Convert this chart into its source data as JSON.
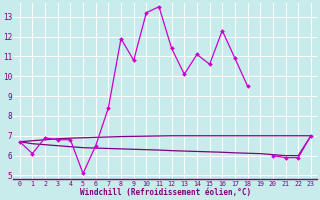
{
  "xlabel": "Windchill (Refroidissement éolien,°C)",
  "background_color": "#c8ecec",
  "grid_color": "#b0d8d8",
  "line_main_color": "#cc00cc",
  "line_upper_color": "#800080",
  "line_lower_color": "#800080",
  "x": [
    0,
    1,
    2,
    3,
    4,
    5,
    6,
    7,
    8,
    9,
    10,
    11,
    12,
    13,
    14,
    15,
    16,
    17,
    18,
    19,
    20,
    21,
    22,
    23
  ],
  "y_curve": [
    6.7,
    6.1,
    6.9,
    6.8,
    6.8,
    5.1,
    6.5,
    8.4,
    11.9,
    10.8,
    13.2,
    13.5,
    11.4,
    10.1,
    11.1,
    10.6,
    12.3,
    10.9,
    9.5,
    null,
    6.0,
    5.9,
    5.9,
    7.0
  ],
  "y_upper": [
    6.7,
    6.75,
    6.8,
    6.85,
    6.88,
    6.9,
    6.92,
    6.94,
    6.96,
    6.97,
    6.98,
    6.99,
    7.0,
    7.0,
    7.0,
    7.0,
    7.0,
    7.0,
    7.0,
    7.0,
    7.0,
    7.0,
    7.0,
    7.0
  ],
  "y_lower": [
    6.7,
    6.6,
    6.55,
    6.5,
    6.45,
    6.4,
    6.38,
    6.36,
    6.34,
    6.32,
    6.3,
    6.28,
    6.25,
    6.23,
    6.21,
    6.19,
    6.17,
    6.14,
    6.12,
    6.1,
    6.05,
    6.0,
    6.0,
    7.0
  ],
  "ylim_min": 4.8,
  "ylim_max": 13.7,
  "yticks": [
    5,
    6,
    7,
    8,
    9,
    10,
    11,
    12,
    13
  ],
  "xticks": [
    0,
    1,
    2,
    3,
    4,
    5,
    6,
    7,
    8,
    9,
    10,
    11,
    12,
    13,
    14,
    15,
    16,
    17,
    18,
    19,
    20,
    21,
    22,
    23
  ],
  "tick_color": "#800080",
  "axis_line_color": "#800080",
  "xlabel_color": "#800080"
}
